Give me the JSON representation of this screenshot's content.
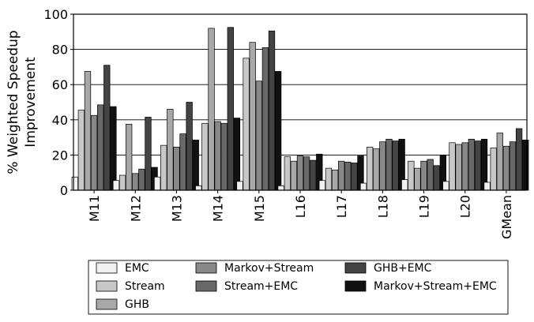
{
  "chart_data": {
    "type": "bar",
    "ylabel": [
      "% Weighted Speedup",
      "Improvement"
    ],
    "ylim": [
      0,
      100
    ],
    "yticks": [
      "0",
      "20",
      "40",
      "60",
      "80",
      "100"
    ],
    "grid": "horizontal",
    "legend_position": "bottom",
    "categories": [
      "M11",
      "M12",
      "M13",
      "M14",
      "M15",
      "L16",
      "L17",
      "L18",
      "L19",
      "L20",
      "GMean"
    ],
    "series": [
      {
        "name": "EMC",
        "color": "#f0f0f0",
        "values": [
          7.5,
          5.5,
          7.5,
          2.5,
          5,
          2.5,
          5.5,
          4,
          6,
          5,
          4.5
        ]
      },
      {
        "name": "Stream",
        "color": "#c8c8c8",
        "values": [
          45.5,
          8.5,
          25.5,
          38,
          75,
          19,
          12.5,
          24.5,
          16.5,
          27,
          24
        ]
      },
      {
        "name": "GHB",
        "color": "#a8a8a8",
        "values": [
          67.5,
          37.5,
          46,
          92,
          84,
          16.5,
          11.5,
          23.5,
          12.5,
          26,
          32.5
        ]
      },
      {
        "name": "Markov+Stream",
        "color": "#888888",
        "values": [
          42.5,
          9.5,
          24.5,
          39,
          62,
          19.5,
          16.5,
          27.5,
          16.5,
          27,
          25
        ]
      },
      {
        "name": "Stream+EMC",
        "color": "#686868",
        "values": [
          48.5,
          12,
          32,
          38,
          81,
          19,
          16,
          29,
          17.5,
          29,
          27.5
        ]
      },
      {
        "name": "GHB+EMC",
        "color": "#444444",
        "values": [
          71,
          41.5,
          50,
          92.5,
          90.5,
          17,
          15.5,
          28,
          14,
          28,
          35
        ]
      },
      {
        "name": "Markov+Stream+EMC",
        "color": "#111111",
        "values": [
          47.5,
          13,
          28.5,
          41,
          67.5,
          20.5,
          19.5,
          29,
          20,
          29,
          28.5
        ]
      }
    ],
    "legend_rows": [
      [
        "EMC",
        "Markov+Stream",
        "GHB+EMC"
      ],
      [
        "Stream",
        "Stream+EMC",
        "Markov+Stream+EMC"
      ],
      [
        "GHB"
      ]
    ]
  }
}
